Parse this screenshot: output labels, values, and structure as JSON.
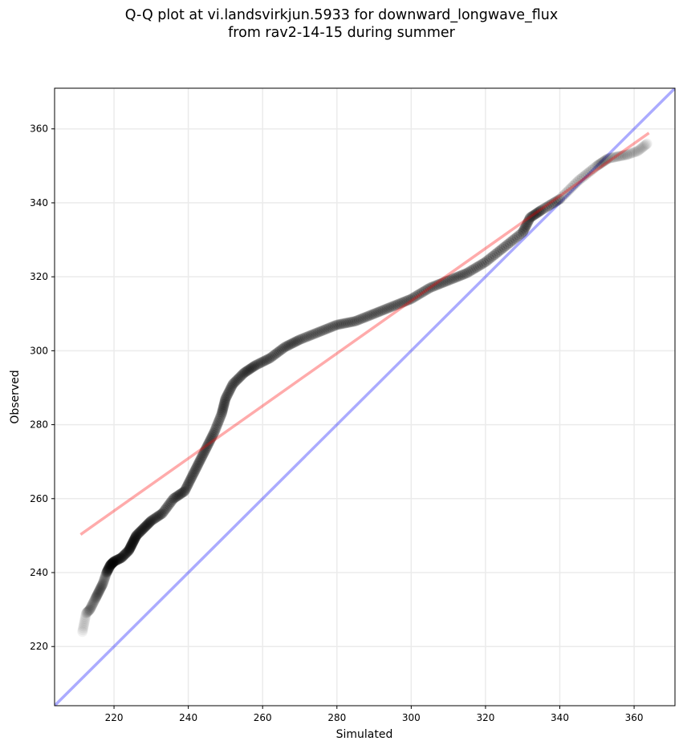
{
  "chart_data": {
    "type": "scatter",
    "title": "Q-Q plot at vi.landsvirkjun.5933 for downward_longwave_flux",
    "subtitle": "from rav2-14-15 during summer",
    "xlabel": "Simulated",
    "ylabel": "Observed",
    "xlim": [
      204,
      371
    ],
    "ylim": [
      204,
      371
    ],
    "grid": true,
    "xticks": [
      220,
      240,
      260,
      280,
      300,
      320,
      340,
      360
    ],
    "yticks": [
      220,
      240,
      260,
      280,
      300,
      320,
      340,
      360
    ],
    "quantiles": [
      [
        211.5,
        224
      ],
      [
        212.5,
        229
      ],
      [
        213.5,
        230
      ],
      [
        215,
        233
      ],
      [
        216,
        235
      ],
      [
        217,
        237
      ],
      [
        218,
        240
      ],
      [
        219,
        242
      ],
      [
        220,
        243
      ],
      [
        222,
        244
      ],
      [
        224,
        246
      ],
      [
        225,
        248
      ],
      [
        226,
        250
      ],
      [
        228,
        252
      ],
      [
        230,
        254
      ],
      [
        233,
        256
      ],
      [
        236,
        260
      ],
      [
        239,
        262
      ],
      [
        241,
        266
      ],
      [
        243,
        270
      ],
      [
        245,
        274
      ],
      [
        247,
        278
      ],
      [
        249,
        283
      ],
      [
        250,
        287
      ],
      [
        252,
        291
      ],
      [
        255,
        294
      ],
      [
        258,
        296
      ],
      [
        262,
        298
      ],
      [
        266,
        301
      ],
      [
        270,
        303
      ],
      [
        275,
        305
      ],
      [
        280,
        307
      ],
      [
        285,
        308
      ],
      [
        290,
        310
      ],
      [
        295,
        312
      ],
      [
        300,
        314
      ],
      [
        305,
        317
      ],
      [
        310,
        319
      ],
      [
        315,
        321
      ],
      [
        320,
        324
      ],
      [
        325,
        328
      ],
      [
        330,
        332
      ],
      [
        332,
        336
      ],
      [
        335,
        338
      ],
      [
        340,
        341
      ],
      [
        345,
        346
      ],
      [
        350,
        350
      ],
      [
        353,
        352
      ],
      [
        358,
        353
      ],
      [
        361,
        354
      ],
      [
        363.5,
        356
      ]
    ],
    "fit_line": {
      "x": [
        211,
        364
      ],
      "y": [
        250.3,
        358.9
      ],
      "color": "#ff0000"
    },
    "identity_line": {
      "color": "#0000ff"
    },
    "point_color": "#000000"
  }
}
